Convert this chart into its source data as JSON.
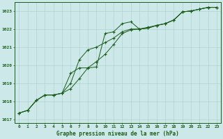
{
  "title": "Graphe pression niveau de la mer (hPa)",
  "background_color": "#cce8e8",
  "grid_color": "#aacccc",
  "line_color": "#1a5c1a",
  "x_labels": [
    "0",
    "1",
    "2",
    "3",
    "4",
    "5",
    "6",
    "7",
    "8",
    "9",
    "10",
    "11",
    "12",
    "13",
    "14",
    "15",
    "16",
    "17",
    "18",
    "19",
    "20",
    "21",
    "22",
    "23"
  ],
  "ylim": [
    1016.8,
    1023.5
  ],
  "yticks": [
    1017,
    1018,
    1019,
    1020,
    1021,
    1022,
    1023
  ],
  "series": [
    [
      1017.35,
      1017.5,
      1018.05,
      1018.35,
      1018.35,
      1018.45,
      1019.55,
      1019.85,
      1019.85,
      1019.9,
      1021.75,
      1021.85,
      1022.3,
      1022.4,
      1022.0,
      1022.05,
      1022.2,
      1022.3,
      1022.5,
      1022.95,
      1023.0,
      1023.1,
      1023.2,
      1023.2
    ],
    [
      1017.35,
      1017.5,
      1018.05,
      1018.35,
      1018.35,
      1018.45,
      1018.7,
      1019.25,
      1019.85,
      1020.2,
      1020.6,
      1021.15,
      1021.75,
      1021.95,
      1022.0,
      1022.1,
      1022.2,
      1022.3,
      1022.5,
      1022.95,
      1023.0,
      1023.1,
      1023.2,
      1023.2
    ],
    [
      1017.35,
      1017.5,
      1018.05,
      1018.35,
      1018.35,
      1018.45,
      1019.0,
      1020.3,
      1020.85,
      1021.0,
      1021.25,
      1021.5,
      1021.85,
      1022.0,
      1022.0,
      1022.05,
      1022.2,
      1022.3,
      1022.5,
      1022.95,
      1023.0,
      1023.1,
      1023.2,
      1023.2
    ]
  ]
}
